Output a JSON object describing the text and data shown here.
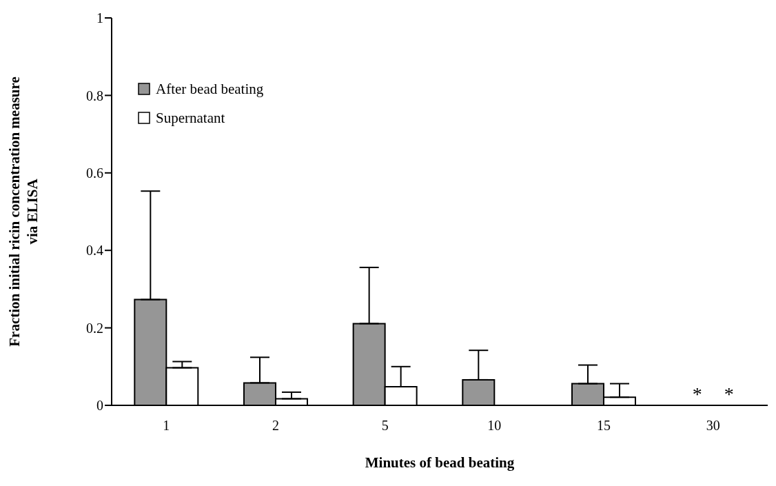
{
  "chart_data": {
    "type": "bar",
    "categories": [
      "1",
      "2",
      "5",
      "10",
      "15",
      "30"
    ],
    "xlabel": "Minutes of bead beating",
    "ylabel": "Fraction initial ricin concentration measure via ELISA",
    "series": [
      {
        "name": "After bead beating",
        "color": "#969696",
        "values": [
          0.273,
          0.058,
          0.211,
          0.066,
          0.056,
          null
        ],
        "errors": [
          [
            0.273,
            0.553
          ],
          [
            0.058,
            0.124
          ],
          [
            0.211,
            0.356
          ],
          [
            0.066,
            0.142
          ],
          [
            0.056,
            0.104
          ],
          null
        ]
      },
      {
        "name": "Supernatant",
        "color": "#ffffff",
        "values": [
          0.097,
          0.017,
          0.048,
          null,
          0.021,
          null
        ],
        "errors": [
          [
            0.097,
            0.113
          ],
          [
            0.017,
            0.034
          ],
          [
            0.048,
            0.1
          ],
          null,
          [
            0.021,
            0.056
          ],
          null
        ]
      }
    ],
    "ylim": [
      0,
      1
    ],
    "yticks": [
      0,
      0.2,
      0.4,
      0.6,
      0.8,
      1
    ],
    "annotations": [
      "*",
      "*"
    ],
    "legend": "top left",
    "grid": false
  }
}
